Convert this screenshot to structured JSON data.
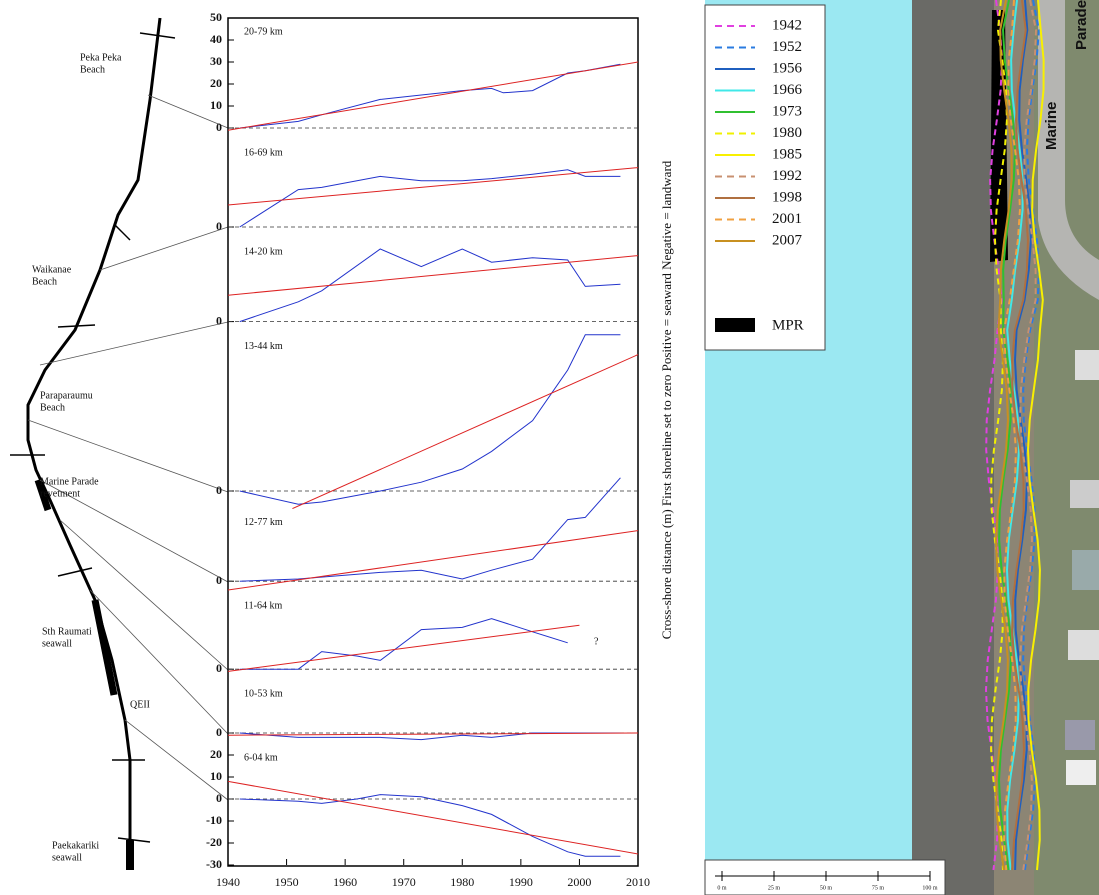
{
  "figure": {
    "y_label": "Cross-shore distance (m)   First shoreline set to zero   Positive = seaward   Negative = landward"
  },
  "map": {
    "labels": [
      [
        "Peka Peka",
        "Beach"
      ],
      [
        "Waikanae",
        "Beach"
      ],
      [
        "Paraparaumu",
        "Beach"
      ],
      [
        "Marine Parade",
        "revetment"
      ],
      [
        "Sth Raumati",
        "seawall"
      ],
      [
        "QEII"
      ],
      [
        "Paekakariki",
        "seawall"
      ]
    ]
  },
  "chart_data": [
    {
      "type": "line",
      "title": "20-79 km",
      "xlim": [
        1940,
        2010
      ],
      "ylim": [
        -5,
        50
      ],
      "yticks": [
        0,
        10,
        20,
        30,
        40,
        50
      ],
      "series": [
        {
          "color": "#2233cc",
          "x": [
            1942,
            1952,
            1956,
            1966,
            1973,
            1980,
            1985,
            1987,
            1992,
            1998,
            2001,
            2007
          ],
          "values": [
            0,
            3,
            6,
            13,
            15,
            17,
            18,
            16,
            17,
            25,
            26,
            29
          ]
        },
        {
          "color": "#dd2222",
          "x": [
            1940,
            2010
          ],
          "values": [
            -1,
            30
          ]
        }
      ]
    },
    {
      "type": "line",
      "title": "16-69 km",
      "xlim": [
        1940,
        2010
      ],
      "ylim": [
        -5,
        40
      ],
      "yticks": [
        0
      ],
      "series": [
        {
          "color": "#2233cc",
          "x": [
            1942,
            1952,
            1956,
            1966,
            1973,
            1980,
            1985,
            1992,
            1998,
            2001,
            2007
          ],
          "values": [
            0,
            17,
            18,
            23,
            21,
            21,
            22,
            24,
            26,
            23,
            23
          ]
        },
        {
          "color": "#dd2222",
          "x": [
            1940,
            2010
          ],
          "values": [
            10,
            27
          ]
        }
      ]
    },
    {
      "type": "line",
      "title": "14-20 km",
      "xlim": [
        1940,
        2010
      ],
      "ylim": [
        -5,
        38
      ],
      "yticks": [
        0
      ],
      "series": [
        {
          "color": "#2233cc",
          "x": [
            1942,
            1952,
            1956,
            1966,
            1973,
            1980,
            1985,
            1992,
            1998,
            2001,
            2007
          ],
          "values": [
            0,
            9,
            14,
            33,
            25,
            33,
            27,
            29,
            28,
            16,
            17
          ]
        },
        {
          "color": "#dd2222",
          "x": [
            1940,
            2010
          ],
          "values": [
            12,
            30
          ]
        }
      ]
    },
    {
      "type": "line",
      "title": "13-44 km",
      "xlim": [
        1940,
        2010
      ],
      "ylim": [
        -8,
        72
      ],
      "yticks": [
        0
      ],
      "series": [
        {
          "color": "#2233cc",
          "x": [
            1942,
            1952,
            1956,
            1966,
            1973,
            1980,
            1985,
            1992,
            1998,
            2001,
            2007
          ],
          "values": [
            0,
            -6,
            -5,
            0,
            4,
            10,
            18,
            32,
            55,
            71,
            71
          ]
        },
        {
          "color": "#dd2222",
          "x": [
            1951,
            2010
          ],
          "values": [
            -8,
            62
          ]
        }
      ]
    },
    {
      "type": "line",
      "title": "12-77 km",
      "xlim": [
        1940,
        2010
      ],
      "ylim": [
        -5,
        33
      ],
      "yticks": [
        0
      ],
      "series": [
        {
          "color": "#2233cc",
          "x": [
            1942,
            1952,
            1966,
            1973,
            1980,
            1985,
            1992,
            1998,
            2001,
            2007
          ],
          "values": [
            0,
            1,
            4,
            5,
            1,
            5,
            10,
            28,
            29,
            47
          ]
        },
        {
          "color": "#dd2222",
          "x": [
            1940,
            2010
          ],
          "values": [
            -4,
            23
          ]
        }
      ]
    },
    {
      "type": "line",
      "title": "11-64 km",
      "xlim": [
        1940,
        2010
      ],
      "ylim": [
        -5,
        35
      ],
      "yticks": [
        0
      ],
      "annotation": "?",
      "series": [
        {
          "color": "#2233cc",
          "x": [
            1942,
            1952,
            1956,
            1962,
            1966,
            1973,
            1980,
            1985,
            1992,
            1998
          ],
          "values": [
            0,
            0,
            8,
            6,
            4,
            18,
            19,
            23,
            17,
            12
          ]
        },
        {
          "color": "#dd2222",
          "x": [
            1940,
            2000
          ],
          "values": [
            -1,
            20
          ]
        }
      ]
    },
    {
      "type": "line",
      "title": "10-53 km",
      "xlim": [
        1940,
        2010
      ],
      "ylim": [
        -5,
        24
      ],
      "yticks": [
        0
      ],
      "series": [
        {
          "color": "#2233cc",
          "x": [
            1942,
            1952,
            1966,
            1973,
            1980,
            1985,
            1992,
            2007
          ],
          "values": [
            0,
            -2,
            -2,
            -3,
            -1,
            -2,
            0,
            0
          ]
        },
        {
          "color": "#dd2222",
          "x": [
            1940,
            2010
          ],
          "values": [
            -1,
            0
          ]
        }
      ]
    },
    {
      "type": "line",
      "title": "6-04 km",
      "xlim": [
        1940,
        2010
      ],
      "ylim": [
        -30,
        25
      ],
      "yticks": [
        -30,
        -20,
        -10,
        0,
        10,
        20
      ],
      "xticks": [
        1940,
        1950,
        1960,
        1970,
        1980,
        1990,
        2000,
        2010
      ],
      "series": [
        {
          "color": "#2233cc",
          "x": [
            1942,
            1952,
            1956,
            1962,
            1966,
            1973,
            1980,
            1985,
            1992,
            1998,
            2001,
            2007
          ],
          "values": [
            0,
            -1,
            -2,
            0,
            2,
            1,
            -3,
            -7,
            -17,
            -24,
            -26,
            -26
          ]
        },
        {
          "color": "#dd2222",
          "x": [
            1940,
            2010
          ],
          "values": [
            8,
            -25
          ]
        }
      ]
    }
  ],
  "photo": {
    "legend": [
      {
        "label": "1942",
        "color": "#e040e0",
        "dash": true
      },
      {
        "label": "1952",
        "color": "#2a7be0",
        "dash": true
      },
      {
        "label": "1956",
        "color": "#1f5fbf",
        "dash": false
      },
      {
        "label": "1966",
        "color": "#40e8e8",
        "dash": false
      },
      {
        "label": "1973",
        "color": "#30c030",
        "dash": false
      },
      {
        "label": "1980",
        "color": "#f0f000",
        "dash": true
      },
      {
        "label": "1985",
        "color": "#f8f000",
        "dash": false
      },
      {
        "label": "1992",
        "color": "#c89070",
        "dash": true
      },
      {
        "label": "1998",
        "color": "#b07040",
        "dash": false
      },
      {
        "label": "2001",
        "color": "#f0a040",
        "dash": true
      },
      {
        "label": "2007",
        "color": "#c89020",
        "dash": false
      }
    ],
    "mpr": "MPR",
    "streets": [
      "Marine",
      "Parade"
    ],
    "scale": [
      "0 m",
      "25 m",
      "50 m",
      "75 m",
      "100 m"
    ]
  }
}
